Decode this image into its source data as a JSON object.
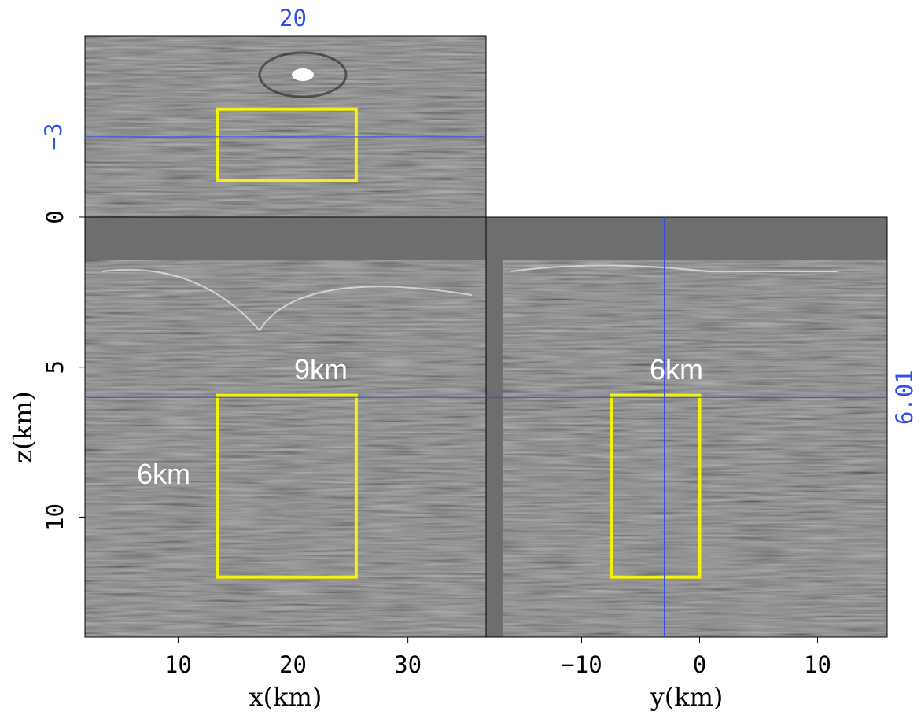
{
  "chart_data": {
    "type": "seismic-cube",
    "xlabel": "x(km)",
    "ylabel": "y(km)",
    "zlabel": "z(km)",
    "xlim": [
      1.9,
      36.8
    ],
    "ylim": [
      -18.1,
      15.9
    ],
    "zlim": [
      0,
      14
    ],
    "xticks": [
      10,
      20,
      30
    ],
    "yticks": [
      {
        "value": -10,
        "label": "−10"
      },
      0,
      10
    ],
    "zticks": [
      0,
      5,
      10
    ],
    "crosshair": {
      "x": 20,
      "y": {
        "value": -3,
        "label": "−3"
      },
      "z": 6.01
    },
    "crosshair_color": "#2f4fe8",
    "highlight": {
      "x": [
        13.4,
        25.5
      ],
      "z": [
        5.94,
        12
      ],
      "y": [
        -7.5,
        0
      ],
      "y_top": [
        -11.2,
        2.2
      ]
    },
    "highlight_color": "#f2f20a",
    "annotations": [
      "9km",
      "6km",
      "6km"
    ]
  }
}
